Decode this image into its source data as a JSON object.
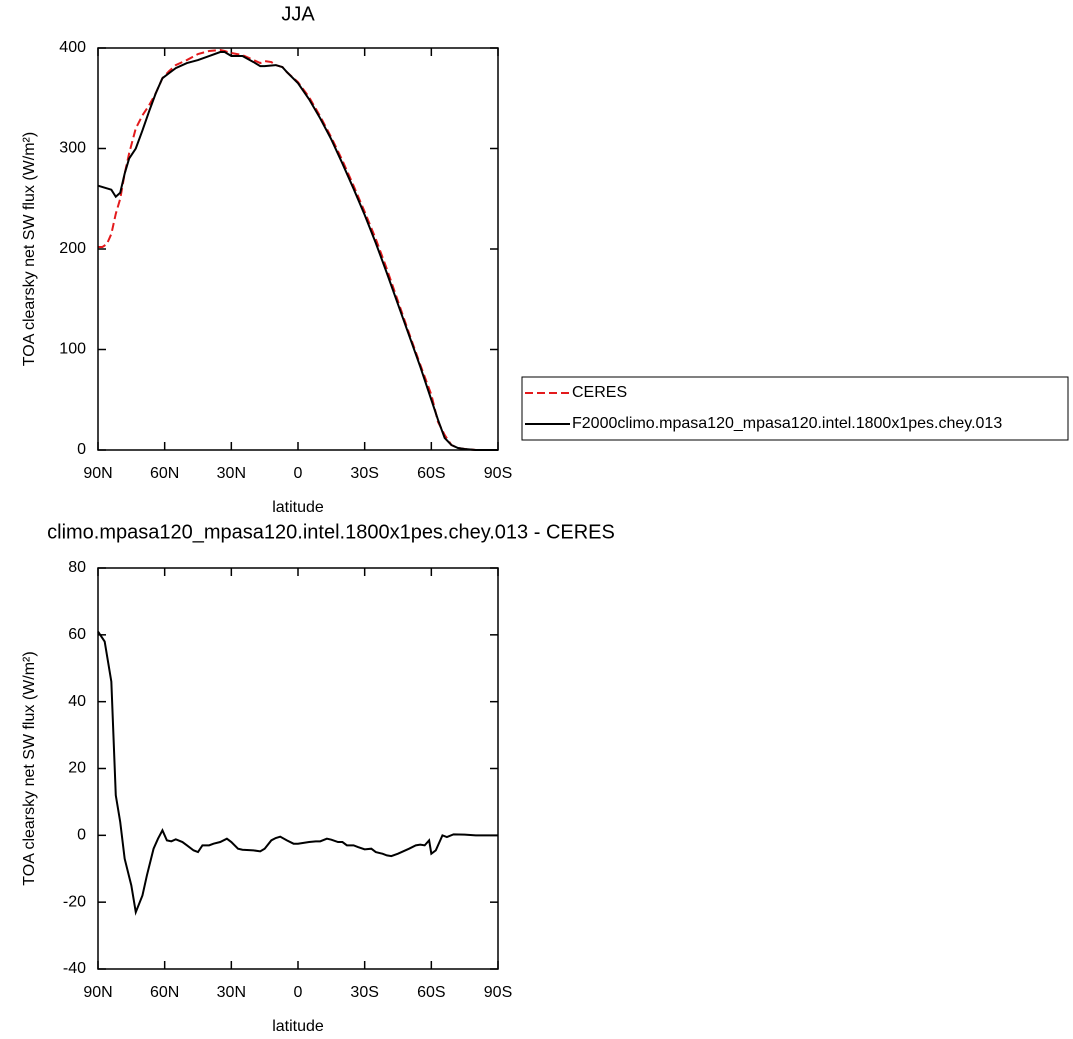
{
  "chart_data": [
    {
      "type": "line",
      "title": "JJA",
      "xlabel": "latitude",
      "ylabel": "TOA clearsky net SW flux (W/m²)",
      "xlim": [
        90,
        -90
      ],
      "ylim": [
        0,
        400
      ],
      "xticks": [
        {
          "value": 90,
          "label": "90N"
        },
        {
          "value": 60,
          "label": "60N"
        },
        {
          "value": 30,
          "label": "30N"
        },
        0,
        {
          "value": -30,
          "label": "30S"
        },
        {
          "value": -60,
          "label": "60S"
        },
        {
          "value": -90,
          "label": "90S"
        }
      ],
      "yticks": [
        0,
        100,
        200,
        300,
        400
      ],
      "legend": "right",
      "series": [
        {
          "name": "CERES",
          "color": "#e31a1c",
          "line_style": "dashed",
          "x": [
            90,
            88,
            86,
            84,
            82,
            80,
            78,
            76,
            73,
            70,
            67,
            64,
            61,
            58,
            55,
            50,
            45,
            40,
            35,
            33,
            30,
            25,
            20,
            17,
            15,
            12,
            10,
            7,
            5,
            0,
            -5,
            -10,
            -15,
            -20,
            -25,
            -30,
            -35,
            -40,
            -45,
            -50,
            -55,
            -60,
            -63,
            -66,
            -69,
            -72,
            -75,
            -80,
            -85,
            -90
          ],
          "values": [
            202,
            202,
            205,
            215,
            235,
            250,
            275,
            295,
            320,
            333,
            343,
            355,
            370,
            377,
            383,
            388,
            394,
            397,
            398,
            397,
            395,
            393,
            388,
            385,
            387,
            386,
            383,
            381,
            376,
            366,
            351,
            332,
            311,
            288,
            263,
            237,
            210,
            180,
            148,
            116,
            85,
            55,
            28,
            15,
            5,
            2,
            1,
            0,
            0,
            0
          ]
        },
        {
          "name": "F2000climo.mpasa120_mpasa120.intel.1800x1pes.chey.013",
          "color": "#000000",
          "line_style": "solid",
          "x": [
            90,
            87,
            84,
            82,
            80,
            78,
            76,
            73,
            70,
            67,
            64,
            61,
            58,
            55,
            50,
            45,
            40,
            35,
            33,
            30,
            25,
            20,
            17,
            15,
            10,
            7,
            5,
            0,
            -5,
            -10,
            -15,
            -20,
            -25,
            -30,
            -35,
            -40,
            -45,
            -50,
            -55,
            -60,
            -63,
            -66,
            -69,
            -72,
            -75,
            -80,
            -85,
            -90
          ],
          "values": [
            263,
            261,
            259,
            252,
            256,
            275,
            290,
            300,
            318,
            337,
            355,
            370,
            375,
            380,
            385,
            388,
            392,
            396,
            396,
            392,
            392,
            386,
            382,
            382,
            383,
            381,
            376,
            365,
            349,
            330,
            309,
            285,
            260,
            234,
            206,
            176,
            145,
            114,
            83,
            50,
            30,
            12,
            5,
            2,
            1,
            0,
            0,
            0
          ]
        }
      ]
    },
    {
      "type": "line",
      "title": "climo.mpasa120_mpasa120.intel.1800x1pes.chey.013 - CERES",
      "xlabel": "latitude",
      "ylabel": "TOA clearsky net SW flux (W/m²)",
      "xlim": [
        90,
        -90
      ],
      "ylim": [
        -40,
        80
      ],
      "xticks": [
        {
          "value": 90,
          "label": "90N"
        },
        {
          "value": 60,
          "label": "60N"
        },
        {
          "value": 30,
          "label": "30N"
        },
        0,
        {
          "value": -30,
          "label": "30S"
        },
        {
          "value": -60,
          "label": "60S"
        },
        {
          "value": -90,
          "label": "90S"
        }
      ],
      "yticks": [
        -40,
        -20,
        0,
        20,
        40,
        60,
        80
      ],
      "series": [
        {
          "color": "#000000",
          "line_style": "solid",
          "x": [
            90,
            87,
            84,
            82,
            80,
            78,
            75,
            73,
            70,
            68,
            65,
            63,
            61,
            59,
            57,
            55,
            52,
            50,
            47,
            45,
            43,
            40,
            38,
            35,
            32,
            30,
            27,
            25,
            20,
            17,
            15,
            12,
            10,
            8,
            5,
            2,
            0,
            -5,
            -8,
            -10,
            -13,
            -15,
            -18,
            -20,
            -22,
            -25,
            -27,
            -30,
            -33,
            -35,
            -38,
            -40,
            -42,
            -45,
            -50,
            -53,
            -55,
            -57,
            -59,
            -60,
            -62,
            -65,
            -67,
            -70,
            -75,
            -80,
            -85,
            -90
          ],
          "values": [
            61,
            58,
            46,
            12,
            4,
            -7,
            -15,
            -23,
            -18,
            -12,
            -4,
            -1,
            1.5,
            -1.5,
            -1.8,
            -1.2,
            -2,
            -3,
            -4.5,
            -5,
            -3,
            -3,
            -2.5,
            -2,
            -1,
            -2,
            -4,
            -4.3,
            -4.5,
            -4.8,
            -4,
            -1.5,
            -0.8,
            -0.4,
            -1.5,
            -2.5,
            -2.5,
            -2,
            -1.8,
            -1.8,
            -1,
            -1.3,
            -2,
            -2,
            -3,
            -3,
            -3.5,
            -4.2,
            -4,
            -5,
            -5.5,
            -6,
            -6.2,
            -5.5,
            -4,
            -3,
            -2.8,
            -3,
            -1.5,
            -5.5,
            -4.5,
            0,
            -0.5,
            0.3,
            0.2,
            0,
            0,
            0
          ]
        }
      ]
    }
  ]
}
